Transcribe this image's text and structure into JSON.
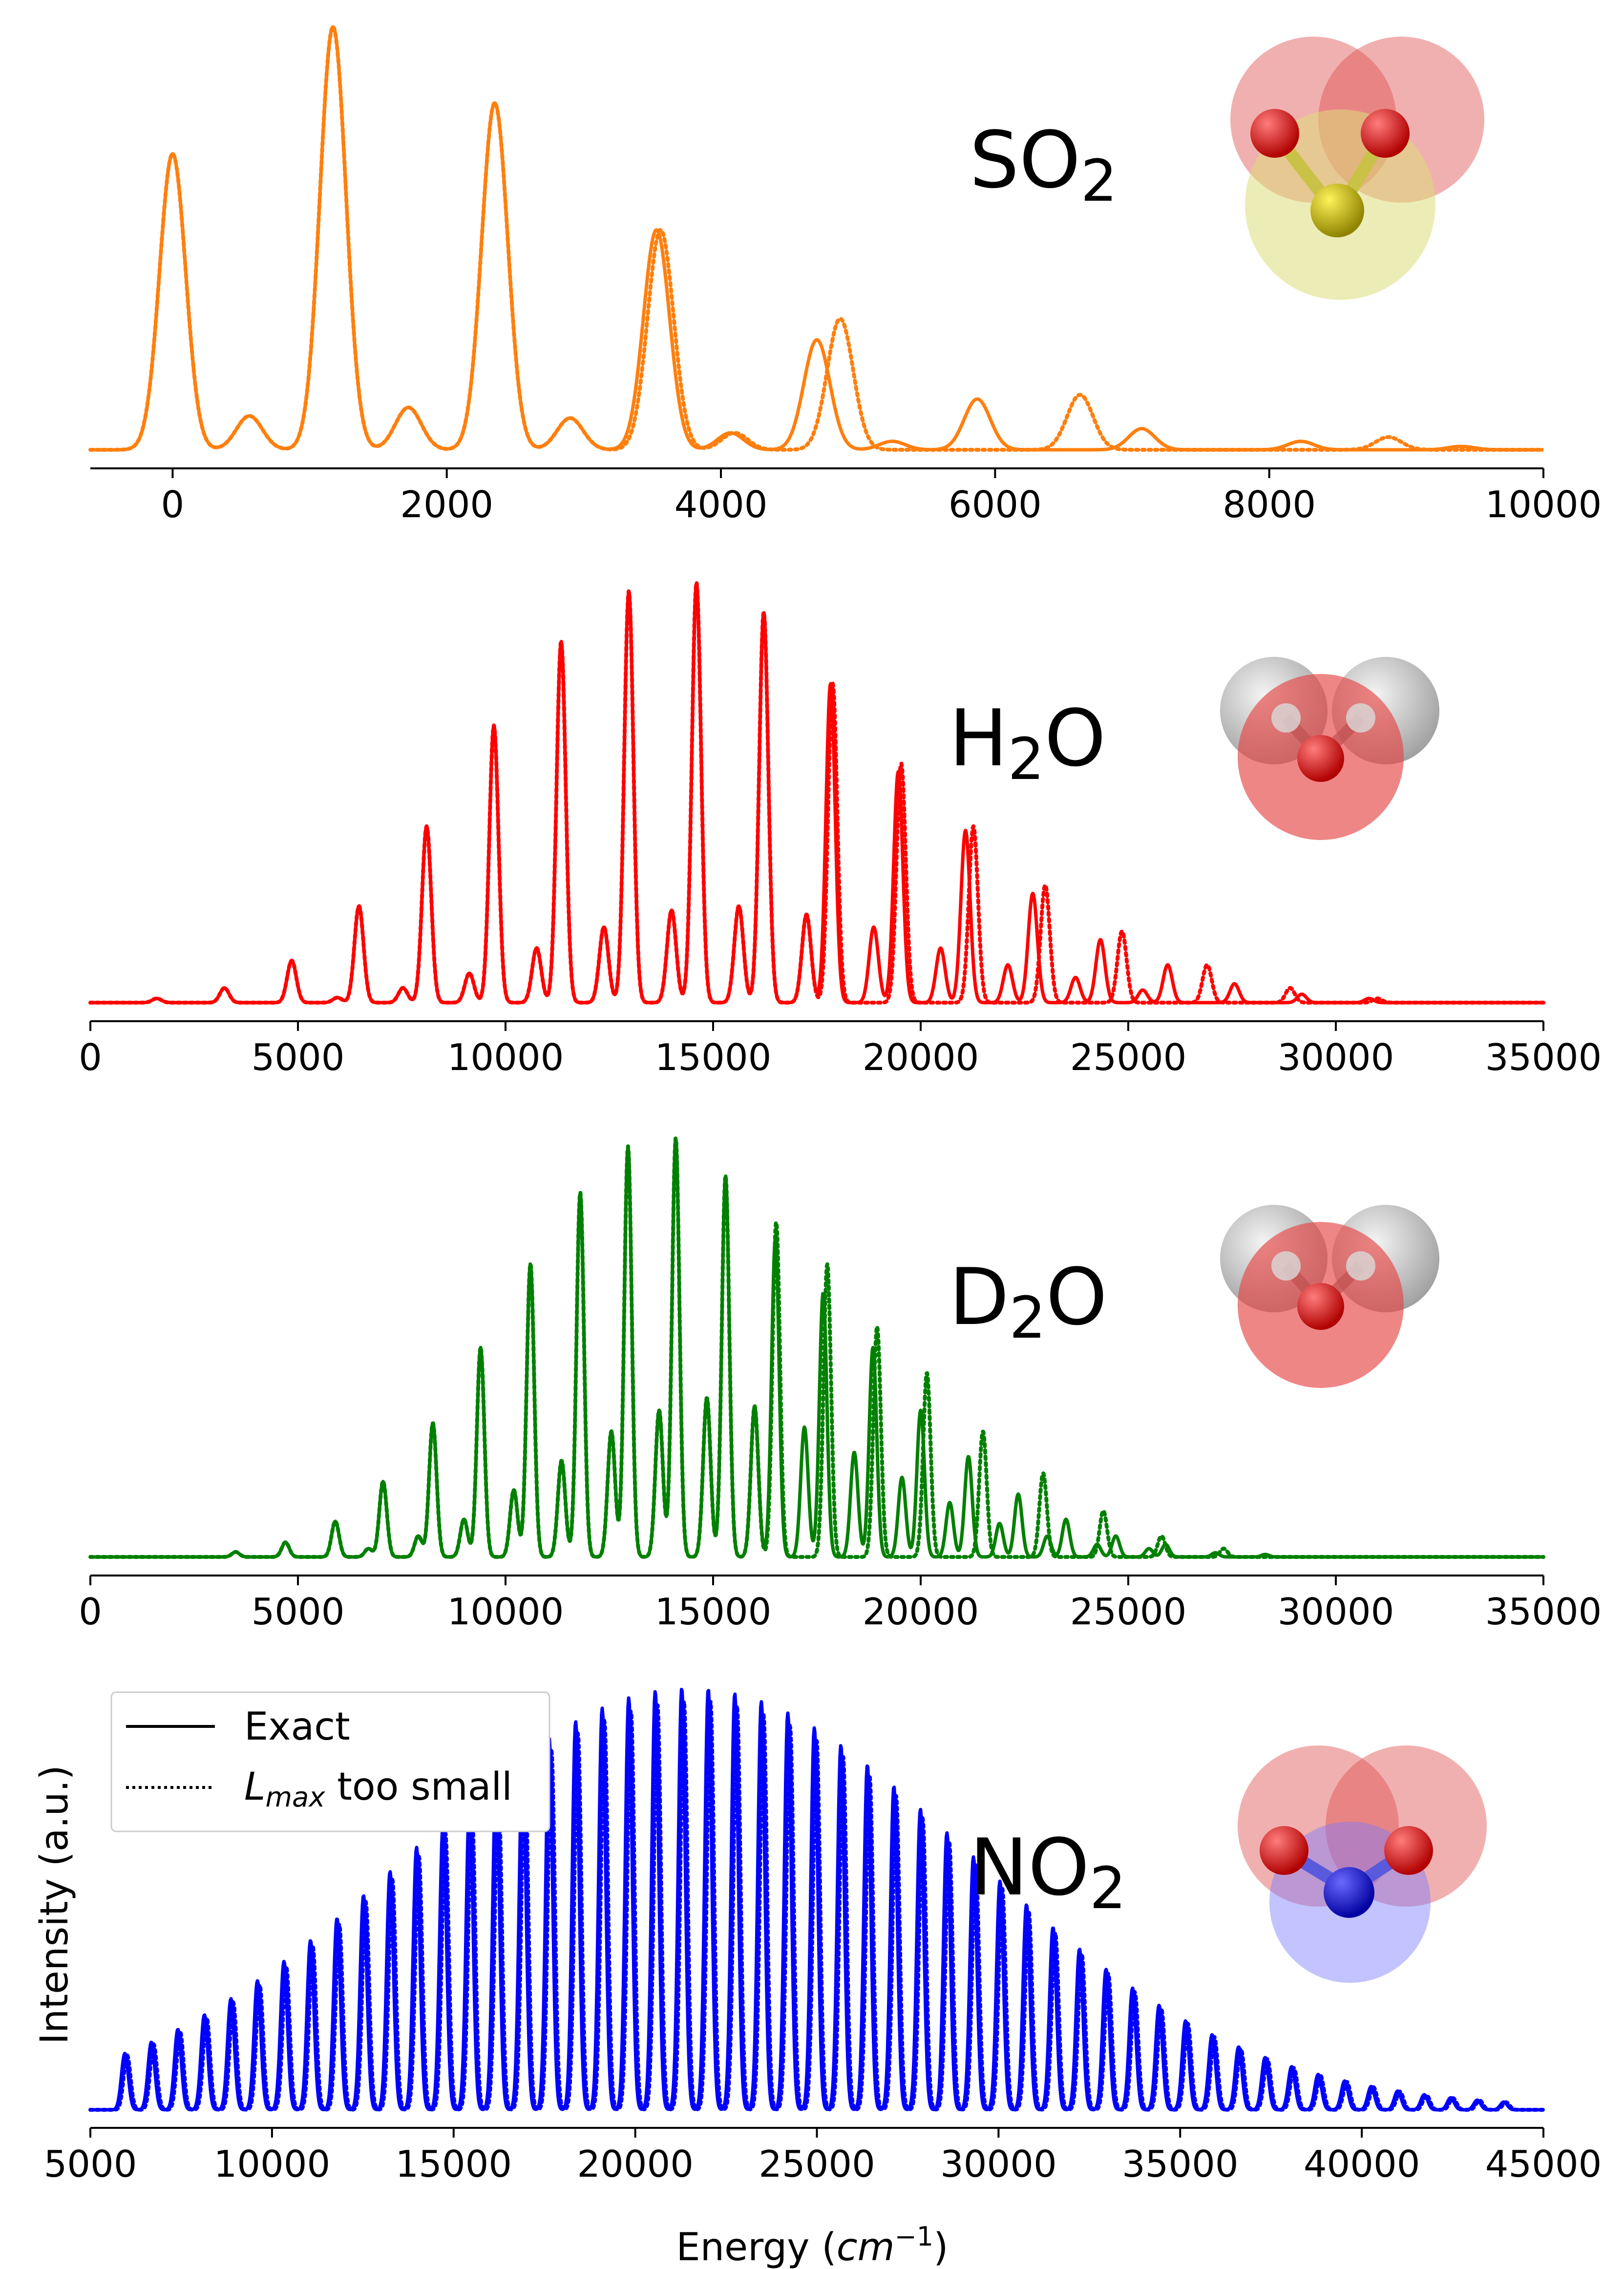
{
  "figure": {
    "ylabel": "Intensity (a.u.)",
    "xlabel_prefix": "Energy (",
    "xlabel_unit": "cm",
    "xlabel_exp": "−1",
    "xlabel_suffix": ")"
  },
  "legend": {
    "placement": "top-left of bottom panel",
    "entries": [
      {
        "label": "Exact",
        "style": "solid"
      },
      {
        "label_main": "L",
        "label_sub": "max",
        "label_rest": " too small",
        "style": "dotted"
      }
    ]
  },
  "chart_data": [
    {
      "type": "line",
      "molecule": {
        "base": "SO",
        "sub": "2"
      },
      "color": "#ff7f0e",
      "xlim": [
        -600,
        10000
      ],
      "xticks": [
        0,
        2000,
        4000,
        6000,
        8000,
        10000
      ],
      "tick_labels": [
        "0",
        "2000",
        "4000",
        "6000",
        "8000",
        "10000"
      ],
      "peak_width": 95,
      "series": [
        {
          "style": "solid",
          "peaks": [
            [
              0,
              0.7
            ],
            [
              560,
              0.08
            ],
            [
              1170,
              1.0
            ],
            [
              1720,
              0.1
            ],
            [
              2350,
              0.82
            ],
            [
              2900,
              0.075
            ],
            [
              3530,
              0.52
            ],
            [
              4070,
              0.04
            ],
            [
              4700,
              0.26
            ],
            [
              5250,
              0.02
            ],
            [
              5870,
              0.12
            ],
            [
              7070,
              0.05
            ],
            [
              8230,
              0.02
            ],
            [
              9400,
              0.008
            ]
          ]
        },
        {
          "style": "dotted",
          "peaks": [
            [
              0,
              0.7
            ],
            [
              560,
              0.08
            ],
            [
              1170,
              1.0
            ],
            [
              1720,
              0.1
            ],
            [
              2350,
              0.82
            ],
            [
              2900,
              0.075
            ],
            [
              3560,
              0.52
            ],
            [
              4100,
              0.04
            ],
            [
              4870,
              0.31
            ],
            [
              6620,
              0.13
            ],
            [
              8870,
              0.03
            ]
          ]
        }
      ]
    },
    {
      "type": "line",
      "molecule": {
        "base": "H",
        "sub": "2",
        "rest": "O"
      },
      "color": "#ff0000",
      "xlim": [
        0,
        35000
      ],
      "xticks": [
        0,
        5000,
        10000,
        15000,
        20000,
        25000,
        30000,
        35000
      ],
      "tick_labels": [
        "0",
        "5000",
        "10000",
        "15000",
        "20000",
        "25000",
        "30000",
        "35000"
      ],
      "peak_width": 110,
      "series": [
        {
          "style": "solid",
          "peaks": [
            [
              1600,
              0.01
            ],
            [
              3230,
              0.035
            ],
            [
              4850,
              0.1
            ],
            [
              5950,
              0.012
            ],
            [
              6470,
              0.23
            ],
            [
              7530,
              0.035
            ],
            [
              8100,
              0.42
            ],
            [
              9130,
              0.07
            ],
            [
              9720,
              0.66
            ],
            [
              10750,
              0.13
            ],
            [
              11340,
              0.86
            ],
            [
              12370,
              0.18
            ],
            [
              12970,
              0.98
            ],
            [
              14000,
              0.22
            ],
            [
              14600,
              1.0
            ],
            [
              15620,
              0.23
            ],
            [
              16220,
              0.93
            ],
            [
              17250,
              0.21
            ],
            [
              17830,
              0.76
            ],
            [
              18870,
              0.18
            ],
            [
              19460,
              0.55
            ],
            [
              20480,
              0.13
            ],
            [
              21080,
              0.41
            ],
            [
              22100,
              0.09
            ],
            [
              22700,
              0.26
            ],
            [
              23730,
              0.06
            ],
            [
              24330,
              0.15
            ],
            [
              25350,
              0.03
            ],
            [
              25950,
              0.09
            ],
            [
              27560,
              0.045
            ],
            [
              29180,
              0.02
            ],
            [
              30800,
              0.01
            ]
          ]
        },
        {
          "style": "dotted",
          "peaks": [
            [
              1600,
              0.01
            ],
            [
              3230,
              0.035
            ],
            [
              4850,
              0.1
            ],
            [
              5950,
              0.012
            ],
            [
              6470,
              0.23
            ],
            [
              7530,
              0.035
            ],
            [
              8100,
              0.42
            ],
            [
              9130,
              0.07
            ],
            [
              9720,
              0.66
            ],
            [
              10750,
              0.13
            ],
            [
              11340,
              0.86
            ],
            [
              12370,
              0.18
            ],
            [
              12970,
              0.98
            ],
            [
              14000,
              0.22
            ],
            [
              14600,
              1.0
            ],
            [
              15620,
              0.23
            ],
            [
              16220,
              0.93
            ],
            [
              17250,
              0.21
            ],
            [
              17880,
              0.76
            ],
            [
              19530,
              0.57
            ],
            [
              21270,
              0.42
            ],
            [
              23000,
              0.28
            ],
            [
              24850,
              0.17
            ],
            [
              26900,
              0.09
            ],
            [
              28900,
              0.035
            ],
            [
              31000,
              0.01
            ]
          ]
        }
      ]
    },
    {
      "type": "line",
      "molecule": {
        "base": "D",
        "sub": "2",
        "rest": "O"
      },
      "color": "#008000",
      "xlim": [
        0,
        35000
      ],
      "xticks": [
        0,
        5000,
        10000,
        15000,
        20000,
        25000,
        30000,
        35000
      ],
      "tick_labels": [
        "0",
        "5000",
        "10000",
        "15000",
        "20000",
        "25000",
        "30000",
        "35000"
      ],
      "peak_width": 90,
      "series": [
        {
          "style": "solid",
          "peaks": [
            [
              3500,
              0.012
            ],
            [
              4700,
              0.035
            ],
            [
              5900,
              0.085
            ],
            [
              6700,
              0.02
            ],
            [
              7050,
              0.18
            ],
            [
              7900,
              0.05
            ],
            [
              8250,
              0.32
            ],
            [
              9000,
              0.09
            ],
            [
              9400,
              0.5
            ],
            [
              10200,
              0.16
            ],
            [
              10600,
              0.7
            ],
            [
              11350,
              0.23
            ],
            [
              11800,
              0.87
            ],
            [
              12550,
              0.3
            ],
            [
              12950,
              0.98
            ],
            [
              13700,
              0.35
            ],
            [
              14100,
              1.0
            ],
            [
              14850,
              0.38
            ],
            [
              15300,
              0.91
            ],
            [
              16000,
              0.36
            ],
            [
              16500,
              0.76
            ],
            [
              17200,
              0.31
            ],
            [
              17650,
              0.63
            ],
            [
              18400,
              0.25
            ],
            [
              18850,
              0.5
            ],
            [
              19550,
              0.19
            ],
            [
              20000,
              0.35
            ],
            [
              20700,
              0.13
            ],
            [
              21150,
              0.24
            ],
            [
              21900,
              0.08
            ],
            [
              22350,
              0.15
            ],
            [
              23050,
              0.05
            ],
            [
              23500,
              0.09
            ],
            [
              24250,
              0.03
            ],
            [
              24700,
              0.05
            ],
            [
              25500,
              0.02
            ],
            [
              25900,
              0.03
            ],
            [
              27100,
              0.01
            ],
            [
              28300,
              0.006
            ]
          ]
        },
        {
          "style": "dotted",
          "peaks": [
            [
              3500,
              0.012
            ],
            [
              4700,
              0.035
            ],
            [
              5900,
              0.085
            ],
            [
              6700,
              0.02
            ],
            [
              7050,
              0.18
            ],
            [
              7900,
              0.05
            ],
            [
              8250,
              0.32
            ],
            [
              9000,
              0.09
            ],
            [
              9400,
              0.5
            ],
            [
              10200,
              0.16
            ],
            [
              10600,
              0.7
            ],
            [
              11350,
              0.23
            ],
            [
              11800,
              0.87
            ],
            [
              12550,
              0.3
            ],
            [
              12950,
              0.98
            ],
            [
              13700,
              0.35
            ],
            [
              14100,
              1.0
            ],
            [
              14850,
              0.38
            ],
            [
              15300,
              0.91
            ],
            [
              16000,
              0.36
            ],
            [
              16520,
              0.8
            ],
            [
              17750,
              0.7
            ],
            [
              18950,
              0.55
            ],
            [
              20150,
              0.44
            ],
            [
              21500,
              0.3
            ],
            [
              22950,
              0.2
            ],
            [
              24400,
              0.11
            ],
            [
              25800,
              0.05
            ],
            [
              27300,
              0.02
            ]
          ]
        }
      ]
    },
    {
      "type": "line",
      "molecule": {
        "base": "NO",
        "sub": "2"
      },
      "color": "#0000ff",
      "xlim": [
        5000,
        45000
      ],
      "xticks": [
        5000,
        10000,
        15000,
        20000,
        25000,
        30000,
        35000,
        40000,
        45000
      ],
      "tick_labels": [
        "5000",
        "10000",
        "15000",
        "20000",
        "25000",
        "30000",
        "35000",
        "40000",
        "45000"
      ],
      "peak_width": 95,
      "envelope": {
        "center": 21500,
        "sigma": 7700,
        "first_peak": 5950,
        "spacing": 730,
        "count": 53,
        "floor": 0.004
      },
      "dotted_shift": 60,
      "dotted_scale": 0.97
    }
  ]
}
